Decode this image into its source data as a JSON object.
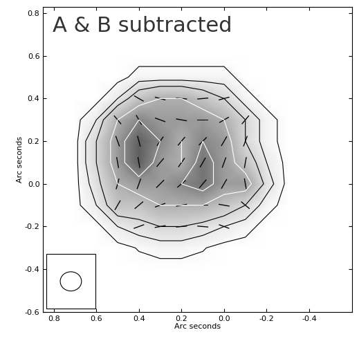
{
  "chart_data": {
    "type": "heatmap",
    "annotation": "A & B subtracted",
    "x_label": "Arc seconds",
    "y_label": "Arc seconds",
    "xlim": [
      0.85,
      -0.6
    ],
    "ylim": [
      -0.6,
      0.83
    ],
    "xticks": [
      0.8,
      0.6,
      0.4,
      0.2,
      0.0,
      -0.2,
      -0.4
    ],
    "yticks": [
      -0.6,
      -0.4,
      -0.2,
      0.0,
      0.2,
      0.4,
      0.6,
      0.8
    ],
    "x": [
      0.8,
      0.7,
      0.6,
      0.5,
      0.4,
      0.3,
      0.2,
      0.1,
      0.0,
      -0.1,
      -0.2,
      -0.3,
      -0.4
    ],
    "y": [
      0.7,
      0.6,
      0.5,
      0.4,
      0.3,
      0.2,
      0.1,
      0.0,
      -0.1,
      -0.2,
      -0.3,
      -0.4,
      -0.5
    ],
    "cells": [
      [
        0,
        0,
        0,
        0,
        0,
        0,
        0,
        0,
        0,
        0,
        0,
        0,
        0
      ],
      [
        0,
        0,
        0,
        0,
        0,
        0,
        0,
        0,
        0,
        0,
        0,
        0,
        0
      ],
      [
        0,
        0,
        0,
        0,
        0.5,
        0.5,
        0.5,
        0.5,
        0.5,
        0,
        0,
        0,
        0
      ],
      [
        0,
        0,
        0,
        1,
        3,
        4,
        4,
        3,
        2,
        0.5,
        0,
        0,
        0
      ],
      [
        0,
        0,
        1,
        4,
        6,
        5,
        5,
        5,
        4,
        2,
        0.5,
        0,
        0
      ],
      [
        0,
        0,
        2,
        5,
        8,
        6,
        4,
        6,
        5,
        2,
        0.5,
        0,
        0
      ],
      [
        0,
        0,
        2,
        5,
        8,
        5,
        4,
        7,
        5,
        3,
        1,
        0,
        0
      ],
      [
        0,
        0,
        1.5,
        4,
        5,
        5,
        6,
        7,
        5,
        5,
        1.5,
        0,
        0
      ],
      [
        0,
        0,
        1,
        3,
        3,
        4,
        4,
        4,
        3,
        2,
        0.5,
        0,
        0
      ],
      [
        0,
        0,
        0,
        1,
        1.5,
        2,
        2,
        1.5,
        1,
        0.5,
        0,
        0,
        0
      ],
      [
        0,
        0,
        0,
        0,
        0.3,
        0.5,
        0.5,
        0.3,
        0,
        0,
        0,
        0,
        0
      ],
      [
        0,
        0,
        0,
        0,
        0,
        0,
        0,
        0,
        0,
        0,
        0,
        0,
        0
      ],
      [
        0,
        0,
        0,
        0,
        0,
        0,
        0,
        0,
        0,
        0,
        0,
        0,
        0
      ]
    ],
    "contour_levels": [
      0.25,
      1,
      2,
      4,
      6
    ],
    "vector_angles": [
      [
        null,
        null,
        null,
        null,
        null,
        null,
        null,
        null,
        null,
        null,
        null,
        null,
        null
      ],
      [
        null,
        null,
        null,
        null,
        null,
        null,
        null,
        null,
        null,
        null,
        null,
        null,
        null
      ],
      [
        null,
        null,
        null,
        null,
        null,
        null,
        null,
        null,
        null,
        null,
        null,
        null,
        null
      ],
      [
        null,
        null,
        null,
        null,
        120,
        105,
        95,
        85,
        75,
        null,
        null,
        null,
        null
      ],
      [
        null,
        null,
        null,
        140,
        150,
        110,
        100,
        90,
        60,
        40,
        null,
        null,
        null
      ],
      [
        null,
        null,
        null,
        160,
        165,
        35,
        40,
        45,
        30,
        20,
        null,
        null,
        null
      ],
      [
        null,
        null,
        null,
        170,
        170,
        40,
        35,
        30,
        20,
        10,
        null,
        null,
        null
      ],
      [
        null,
        null,
        null,
        15,
        20,
        45,
        50,
        40,
        30,
        170,
        null,
        null,
        null
      ],
      [
        null,
        null,
        null,
        30,
        50,
        70,
        80,
        90,
        100,
        130,
        null,
        null,
        null
      ],
      [
        null,
        null,
        null,
        null,
        70,
        80,
        85,
        95,
        110,
        null,
        null,
        null,
        null
      ],
      [
        null,
        null,
        null,
        null,
        null,
        null,
        null,
        null,
        null,
        null,
        null,
        null,
        null
      ],
      [
        null,
        null,
        null,
        null,
        null,
        null,
        null,
        null,
        null,
        null,
        null,
        null,
        null
      ],
      [
        null,
        null,
        null,
        null,
        null,
        null,
        null,
        null,
        null,
        null,
        null,
        null,
        null
      ]
    ],
    "beam": [
      0.1,
      0.09
    ],
    "tick_labels": true
  }
}
